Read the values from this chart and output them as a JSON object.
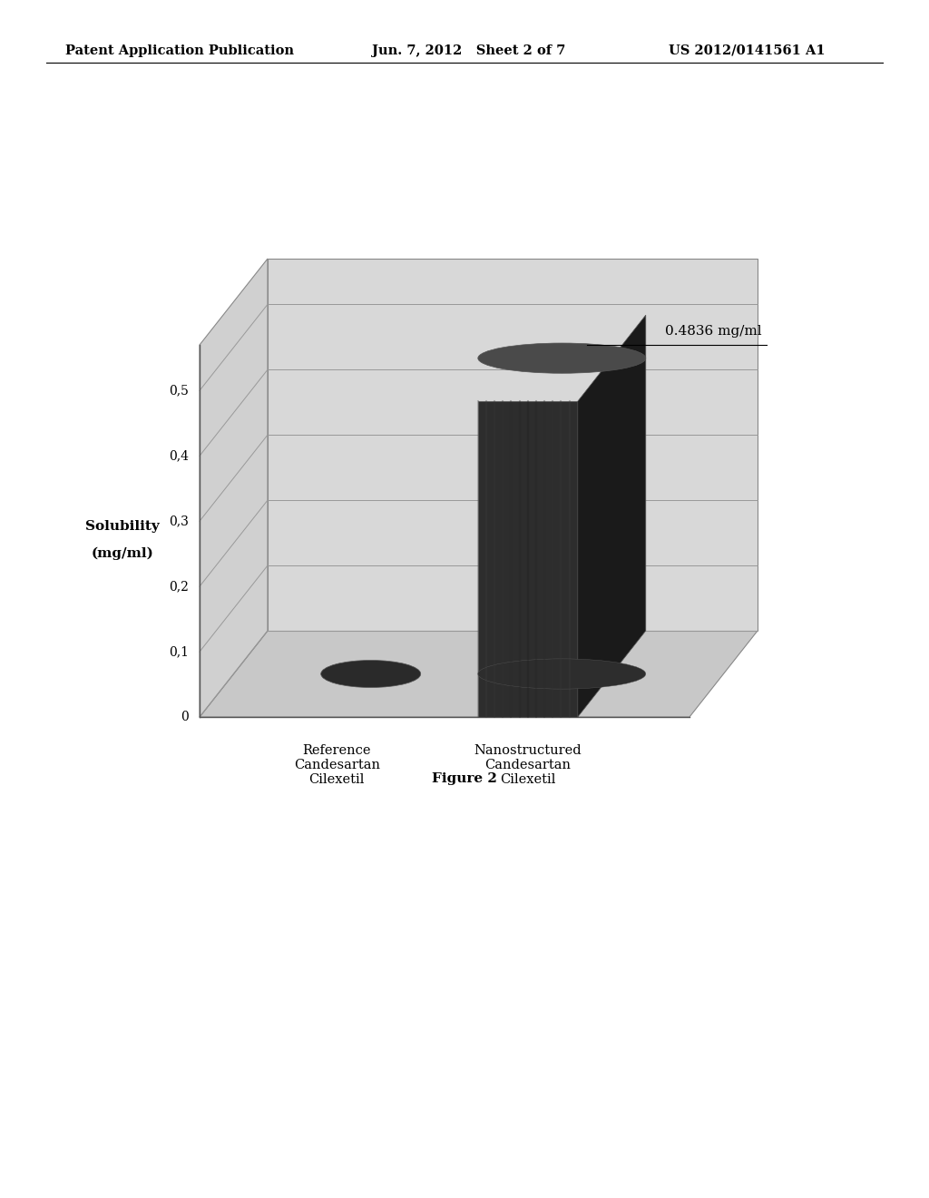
{
  "header_left": "Patent Application Publication",
  "header_mid": "Jun. 7, 2012   Sheet 2 of 7",
  "header_right": "US 2012/0141561 A1",
  "ylabel_line1": "Solubility",
  "ylabel_line2": "(mg/ml)",
  "categories": [
    "Reference\nCandesartan\nCilexetil",
    "Nanostructured\nCandesartan\nCilexetil"
  ],
  "values": [
    0.007,
    0.4836
  ],
  "ytick_labels": [
    "0",
    "0,1",
    "0,2",
    "0,3",
    "0,4",
    "0,5"
  ],
  "ytick_vals": [
    0.0,
    0.1,
    0.2,
    0.3,
    0.4,
    0.5
  ],
  "ylim": [
    0,
    0.57
  ],
  "annotation": "0.4836 mg/ml",
  "figure_label": "Figure 2",
  "background_color": "#ffffff",
  "floor_color": "#c8c8c8",
  "back_wall_color": "#d8d8d8",
  "left_wall_color": "#d0d0d0",
  "grid_color": "#999999",
  "bar_front_color": "#2d2d2d",
  "bar_side_color": "#1a1a1a",
  "bar_top_color": "#3a3a3a",
  "ellipse_color": "#2a2a2a",
  "header_fontsize": 10.5,
  "axis_label_fontsize": 11,
  "tick_fontsize": 10,
  "annot_fontsize": 11,
  "fig_label_fontsize": 11,
  "cat_fontsize": 10.5
}
